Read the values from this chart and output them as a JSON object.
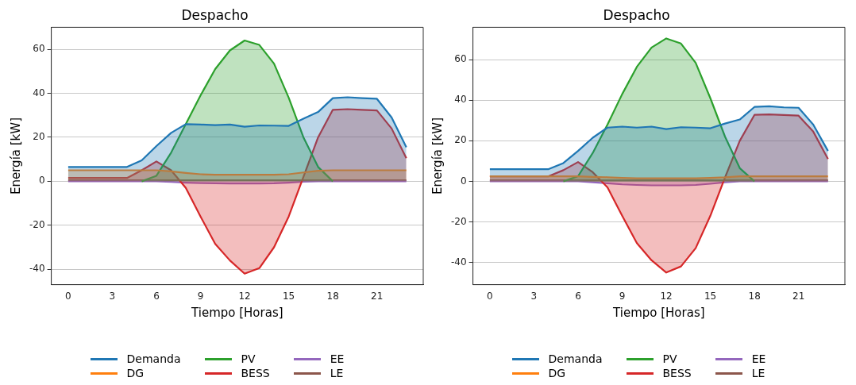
{
  "chart_data": [
    {
      "type": "area",
      "title": "Despacho",
      "xlabel": "Tiempo [Horas]",
      "ylabel": "Energía [kW]",
      "x": [
        0,
        1,
        2,
        3,
        4,
        5,
        6,
        7,
        8,
        9,
        10,
        11,
        12,
        13,
        14,
        15,
        16,
        17,
        18,
        19,
        20,
        21,
        22,
        23
      ],
      "xlim": [
        -1.15,
        24.15
      ],
      "xticks": [
        0,
        3,
        6,
        9,
        12,
        15,
        18,
        21
      ],
      "ylim": [
        -47,
        70
      ],
      "yticks": [
        -40,
        -20,
        0,
        20,
        40,
        60
      ],
      "grid": "y",
      "legend": "bottom",
      "series": [
        {
          "name": "Demanda",
          "color": "#1f77b4",
          "values": [
            6.5,
            6.5,
            6.5,
            6.5,
            6.5,
            9.5,
            16,
            22,
            26,
            25.8,
            25.5,
            25.8,
            24.8,
            25.4,
            25.3,
            25.2,
            28.5,
            31.5,
            37.8,
            38.2,
            37.8,
            37.5,
            29,
            15.5
          ]
        },
        {
          "name": "DG",
          "color": "#ff7f0e",
          "values": [
            5,
            5,
            5,
            5,
            5,
            5,
            5,
            4.5,
            3.8,
            3.2,
            3,
            3,
            3,
            3,
            3,
            3.2,
            4,
            4.8,
            5,
            5,
            5,
            5,
            5,
            5
          ]
        },
        {
          "name": "PV",
          "color": "#2ca02c",
          "values": [
            null,
            null,
            null,
            null,
            null,
            0,
            2.5,
            13,
            26,
            39,
            51,
            59.5,
            64,
            62,
            53.5,
            38,
            20,
            6.5,
            0,
            null,
            null,
            null,
            null,
            null
          ]
        },
        {
          "name": "BESS",
          "color": "#d62728",
          "values": [
            1.5,
            1.5,
            1.5,
            1.5,
            1.5,
            5,
            9,
            5,
            -3,
            -16,
            -28.5,
            -36,
            -42,
            -39.5,
            -30,
            -16,
            2,
            20,
            32.5,
            32.8,
            32.5,
            32.2,
            24,
            10.5
          ]
        },
        {
          "name": "EE",
          "color": "#9467bd",
          "values": [
            0,
            0,
            0,
            0,
            0,
            0,
            0,
            -0.3,
            -0.6,
            -0.8,
            -0.9,
            -1,
            -1,
            -1,
            -0.9,
            -0.6,
            -0.2,
            0,
            0,
            0,
            0,
            0,
            0,
            0
          ]
        },
        {
          "name": "LE",
          "color": "#8c564b",
          "values": [
            0.5,
            0.5,
            0.5,
            0.5,
            0.5,
            0.5,
            0.5,
            0.5,
            0.5,
            0.5,
            0.5,
            0.5,
            0.5,
            0.5,
            0.5,
            0.5,
            0.5,
            0.5,
            0.5,
            0.5,
            0.5,
            0.5,
            0.5,
            0.5
          ]
        }
      ]
    },
    {
      "type": "area",
      "title": "Despacho",
      "xlabel": "Tiempo [Horas]",
      "ylabel": "Energía [kW]",
      "x": [
        0,
        1,
        2,
        3,
        4,
        5,
        6,
        7,
        8,
        9,
        10,
        11,
        12,
        13,
        14,
        15,
        16,
        17,
        18,
        19,
        20,
        21,
        22,
        23
      ],
      "xlim": [
        -1.15,
        24.15
      ],
      "xticks": [
        0,
        3,
        6,
        9,
        12,
        15,
        18,
        21
      ],
      "ylim": [
        -51,
        76
      ],
      "yticks": [
        -40,
        -20,
        0,
        20,
        40,
        60
      ],
      "grid": "y",
      "legend": "bottom",
      "series": [
        {
          "name": "Demanda",
          "color": "#1f77b4",
          "values": [
            6,
            6,
            6,
            6,
            6,
            9,
            15,
            21.5,
            26.5,
            27,
            26.5,
            27,
            25.8,
            26.7,
            26.5,
            26.2,
            28.5,
            30.5,
            36.7,
            37,
            36.5,
            36.3,
            28,
            15
          ]
        },
        {
          "name": "DG",
          "color": "#ff7f0e",
          "values": [
            2.5,
            2.5,
            2.5,
            2.5,
            2.5,
            2.5,
            2.5,
            2.2,
            2,
            1.7,
            1.5,
            1.5,
            1.5,
            1.5,
            1.5,
            1.7,
            2,
            2.5,
            2.5,
            2.5,
            2.5,
            2.5,
            2.5,
            2.5
          ]
        },
        {
          "name": "PV",
          "color": "#2ca02c",
          "values": [
            null,
            null,
            null,
            null,
            null,
            0,
            2.5,
            14,
            28,
            43,
            56.5,
            66,
            70.5,
            68,
            58.5,
            41,
            22,
            6.5,
            0,
            null,
            null,
            null,
            null,
            null
          ]
        },
        {
          "name": "BESS",
          "color": "#d62728",
          "values": [
            2.5,
            2.5,
            2.5,
            2.5,
            2.5,
            5.5,
            9.5,
            4.5,
            -3,
            -17,
            -30.5,
            -39,
            -45,
            -42,
            -33,
            -17,
            2,
            20,
            32.8,
            33,
            32.7,
            32.4,
            24.5,
            11
          ]
        },
        {
          "name": "EE",
          "color": "#9467bd",
          "values": [
            0,
            0,
            0,
            0,
            0,
            0,
            0,
            -0.5,
            -1,
            -1.5,
            -1.8,
            -2,
            -2,
            -2,
            -1.8,
            -1.2,
            -0.5,
            0,
            0,
            0,
            0,
            0,
            0,
            0
          ]
        },
        {
          "name": "LE",
          "color": "#8c564b",
          "values": [
            0.5,
            0.5,
            0.5,
            0.5,
            0.5,
            0.5,
            0.5,
            0.5,
            0.5,
            0.5,
            0.5,
            0.5,
            0.5,
            0.5,
            0.5,
            0.5,
            0.5,
            0.5,
            0.5,
            0.5,
            0.5,
            0.5,
            0.5,
            0.5
          ]
        }
      ]
    }
  ]
}
